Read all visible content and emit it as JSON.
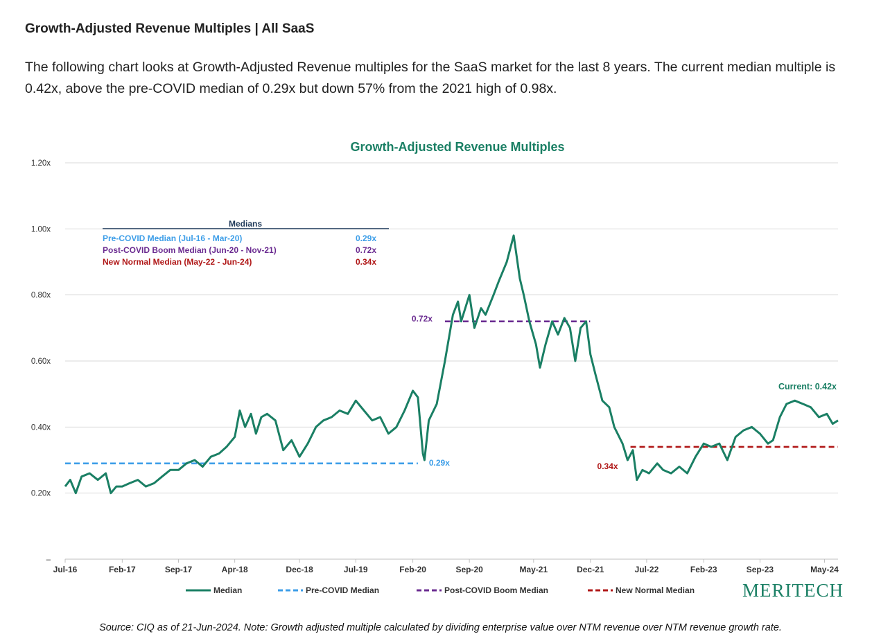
{
  "page": {
    "heading": "Growth-Adjusted Revenue Multiples | All SaaS",
    "intro": "The following chart looks at Growth-Adjusted Revenue multiples for the SaaS market for the last 8 years. The current median multiple is 0.42x, above the pre-COVID median of 0.29x but down 57% from the 2021 high of 0.98x.",
    "source": "Source: CIQ as of 21-Jun-2024. Note: Growth adjusted multiple calculated by dividing enterprise value over NTM revenue over NTM revenue growth rate.",
    "logo_text": "MERITECH"
  },
  "chart_data": {
    "type": "line",
    "title": "Growth-Adjusted Revenue Multiples",
    "xlabel": "",
    "ylabel": "",
    "ylim": [
      0,
      1.2
    ],
    "y_ticks": [
      {
        "value": 1.2,
        "label": "1.20x"
      },
      {
        "value": 1.0,
        "label": "1.00x"
      },
      {
        "value": 0.8,
        "label": "0.80x"
      },
      {
        "value": 0.6,
        "label": "0.60x"
      },
      {
        "value": 0.4,
        "label": "0.40x"
      },
      {
        "value": 0.2,
        "label": "0.20x"
      },
      {
        "value": 0.0,
        "label": "–"
      }
    ],
    "x_range": [
      "2016-07-01",
      "2024-06-21"
    ],
    "x_ticks": [
      {
        "date": "2016-07-01",
        "label": "Jul-16"
      },
      {
        "date": "2017-02-01",
        "label": "Feb-17"
      },
      {
        "date": "2017-09-01",
        "label": "Sep-17"
      },
      {
        "date": "2018-04-01",
        "label": "Apr-18"
      },
      {
        "date": "2018-12-01",
        "label": "Dec-18"
      },
      {
        "date": "2019-07-01",
        "label": "Jul-19"
      },
      {
        "date": "2020-02-01",
        "label": "Feb-20"
      },
      {
        "date": "2020-09-01",
        "label": "Sep-20"
      },
      {
        "date": "2021-05-01",
        "label": "May-21"
      },
      {
        "date": "2021-12-01",
        "label": "Dec-21"
      },
      {
        "date": "2022-07-01",
        "label": "Jul-22"
      },
      {
        "date": "2023-02-01",
        "label": "Feb-23"
      },
      {
        "date": "2023-09-01",
        "label": "Sep-23"
      },
      {
        "date": "2024-05-01",
        "label": "May-24"
      }
    ],
    "series": [
      {
        "name": "Median",
        "color": "#1a7f64",
        "style": "solid",
        "points": [
          [
            "2016-07-01",
            0.22
          ],
          [
            "2016-07-20",
            0.24
          ],
          [
            "2016-08-10",
            0.2
          ],
          [
            "2016-09-01",
            0.25
          ],
          [
            "2016-10-01",
            0.26
          ],
          [
            "2016-11-01",
            0.24
          ],
          [
            "2016-12-01",
            0.26
          ],
          [
            "2016-12-20",
            0.2
          ],
          [
            "2017-01-10",
            0.22
          ],
          [
            "2017-02-01",
            0.22
          ],
          [
            "2017-03-01",
            0.23
          ],
          [
            "2017-04-01",
            0.24
          ],
          [
            "2017-05-01",
            0.22
          ],
          [
            "2017-06-01",
            0.23
          ],
          [
            "2017-07-01",
            0.25
          ],
          [
            "2017-08-01",
            0.27
          ],
          [
            "2017-09-01",
            0.27
          ],
          [
            "2017-10-01",
            0.29
          ],
          [
            "2017-11-01",
            0.3
          ],
          [
            "2017-12-01",
            0.28
          ],
          [
            "2018-01-01",
            0.31
          ],
          [
            "2018-02-01",
            0.32
          ],
          [
            "2018-03-01",
            0.34
          ],
          [
            "2018-04-01",
            0.37
          ],
          [
            "2018-04-20",
            0.45
          ],
          [
            "2018-05-10",
            0.4
          ],
          [
            "2018-06-01",
            0.44
          ],
          [
            "2018-06-20",
            0.38
          ],
          [
            "2018-07-10",
            0.43
          ],
          [
            "2018-08-01",
            0.44
          ],
          [
            "2018-09-01",
            0.42
          ],
          [
            "2018-10-01",
            0.33
          ],
          [
            "2018-11-01",
            0.36
          ],
          [
            "2018-12-01",
            0.31
          ],
          [
            "2019-01-01",
            0.35
          ],
          [
            "2019-02-01",
            0.4
          ],
          [
            "2019-03-01",
            0.42
          ],
          [
            "2019-04-01",
            0.43
          ],
          [
            "2019-05-01",
            0.45
          ],
          [
            "2019-06-01",
            0.44
          ],
          [
            "2019-07-01",
            0.48
          ],
          [
            "2019-08-01",
            0.45
          ],
          [
            "2019-09-01",
            0.42
          ],
          [
            "2019-10-01",
            0.43
          ],
          [
            "2019-11-01",
            0.38
          ],
          [
            "2019-12-01",
            0.4
          ],
          [
            "2020-01-01",
            0.45
          ],
          [
            "2020-02-01",
            0.51
          ],
          [
            "2020-02-20",
            0.49
          ],
          [
            "2020-03-10",
            0.32
          ],
          [
            "2020-03-16",
            0.3
          ],
          [
            "2020-04-01",
            0.42
          ],
          [
            "2020-05-01",
            0.47
          ],
          [
            "2020-06-01",
            0.6
          ],
          [
            "2020-07-01",
            0.74
          ],
          [
            "2020-07-20",
            0.78
          ],
          [
            "2020-08-01",
            0.72
          ],
          [
            "2020-09-01",
            0.8
          ],
          [
            "2020-09-20",
            0.7
          ],
          [
            "2020-10-15",
            0.76
          ],
          [
            "2020-11-01",
            0.74
          ],
          [
            "2020-12-01",
            0.8
          ],
          [
            "2020-12-20",
            0.84
          ],
          [
            "2021-01-20",
            0.9
          ],
          [
            "2021-02-15",
            0.98
          ],
          [
            "2021-03-10",
            0.85
          ],
          [
            "2021-03-25",
            0.8
          ],
          [
            "2021-04-15",
            0.72
          ],
          [
            "2021-05-10",
            0.65
          ],
          [
            "2021-05-25",
            0.58
          ],
          [
            "2021-06-15",
            0.65
          ],
          [
            "2021-07-10",
            0.72
          ],
          [
            "2021-08-01",
            0.68
          ],
          [
            "2021-08-25",
            0.73
          ],
          [
            "2021-09-15",
            0.7
          ],
          [
            "2021-10-05",
            0.6
          ],
          [
            "2021-10-25",
            0.7
          ],
          [
            "2021-11-15",
            0.72
          ],
          [
            "2021-12-01",
            0.62
          ],
          [
            "2021-12-20",
            0.56
          ],
          [
            "2022-01-15",
            0.48
          ],
          [
            "2022-02-10",
            0.46
          ],
          [
            "2022-03-01",
            0.4
          ],
          [
            "2022-04-01",
            0.35
          ],
          [
            "2022-04-20",
            0.3
          ],
          [
            "2022-05-10",
            0.33
          ],
          [
            "2022-05-25",
            0.24
          ],
          [
            "2022-06-15",
            0.27
          ],
          [
            "2022-07-10",
            0.26
          ],
          [
            "2022-08-10",
            0.29
          ],
          [
            "2022-09-01",
            0.27
          ],
          [
            "2022-10-01",
            0.26
          ],
          [
            "2022-11-01",
            0.28
          ],
          [
            "2022-12-01",
            0.26
          ],
          [
            "2023-01-01",
            0.31
          ],
          [
            "2023-02-01",
            0.35
          ],
          [
            "2023-03-01",
            0.34
          ],
          [
            "2023-04-01",
            0.35
          ],
          [
            "2023-05-01",
            0.3
          ],
          [
            "2023-06-01",
            0.37
          ],
          [
            "2023-07-01",
            0.39
          ],
          [
            "2023-08-01",
            0.4
          ],
          [
            "2023-09-01",
            0.38
          ],
          [
            "2023-10-01",
            0.35
          ],
          [
            "2023-10-20",
            0.36
          ],
          [
            "2023-11-15",
            0.43
          ],
          [
            "2023-12-10",
            0.47
          ],
          [
            "2024-01-10",
            0.48
          ],
          [
            "2024-02-10",
            0.47
          ],
          [
            "2024-03-10",
            0.46
          ],
          [
            "2024-04-10",
            0.43
          ],
          [
            "2024-05-10",
            0.44
          ],
          [
            "2024-06-01",
            0.41
          ],
          [
            "2024-06-21",
            0.42
          ]
        ]
      },
      {
        "name": "Pre-COVID Median",
        "color": "#3d9ee8",
        "style": "dashed",
        "value": 0.29,
        "x_range": [
          "2016-07-01",
          "2020-02-20"
        ],
        "label": "0.29x",
        "label_side": "right"
      },
      {
        "name": "Post-COVID Boom Median",
        "color": "#6b2c91",
        "style": "dashed",
        "value": 0.72,
        "x_range": [
          "2020-06-01",
          "2021-11-30"
        ],
        "label": "0.72x",
        "label_side": "left"
      },
      {
        "name": "New Normal Median",
        "color": "#b01717",
        "style": "dashed",
        "value": 0.34,
        "x_range": [
          "2022-05-01",
          "2024-06-21"
        ],
        "label": "0.34x",
        "label_side": "left"
      }
    ],
    "medians_table": {
      "header": "Medians",
      "rows": [
        {
          "label": "Pre-COVID Median (Jul-16 - Mar-20)",
          "value": "0.29x",
          "color": "#3d9ee8"
        },
        {
          "label": "Post-COVID Boom Median (Jun-20 - Nov-21)",
          "value": "0.72x",
          "color": "#6b2c91"
        },
        {
          "label": "New Normal Median (May-22 - Jun-24)",
          "value": "0.34x",
          "color": "#b01717"
        }
      ]
    },
    "current_label": "Current: 0.42x",
    "grid": true,
    "legend_position": "bottom"
  }
}
